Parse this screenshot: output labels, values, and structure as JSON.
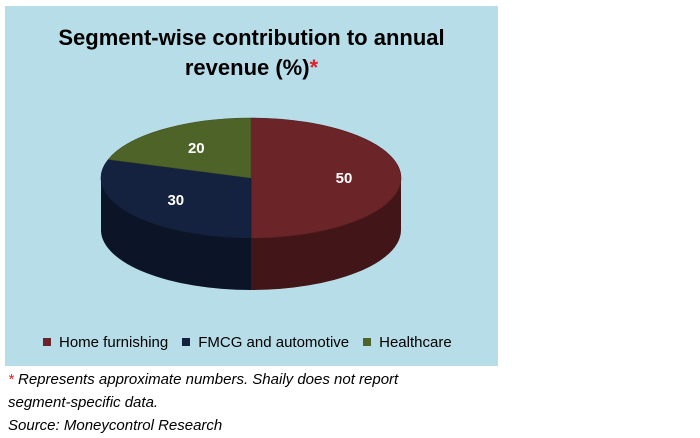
{
  "chart_data": {
    "type": "pie",
    "title_line1": "Segment-wise contribution to annual",
    "title_line2": "revenue (%)",
    "title_marker": "*",
    "categories": [
      "Home furnishing",
      "FMCG and automotive",
      "Healthcare"
    ],
    "values": [
      50,
      30,
      20
    ],
    "data_labels": [
      "50",
      "30",
      "20"
    ],
    "colors": [
      "#6b2427",
      "#14223f",
      "#4e6328"
    ],
    "legend_position": "bottom",
    "style": "3d"
  },
  "colors": {
    "panel_background": "#b7dde8",
    "asterisk": "#e0202a"
  },
  "footnote": {
    "marker": "*",
    "line1": " Represents approximate numbers. Shaily does not report",
    "line2": "segment-specific data.",
    "source": "Source: Moneycontrol Research"
  }
}
